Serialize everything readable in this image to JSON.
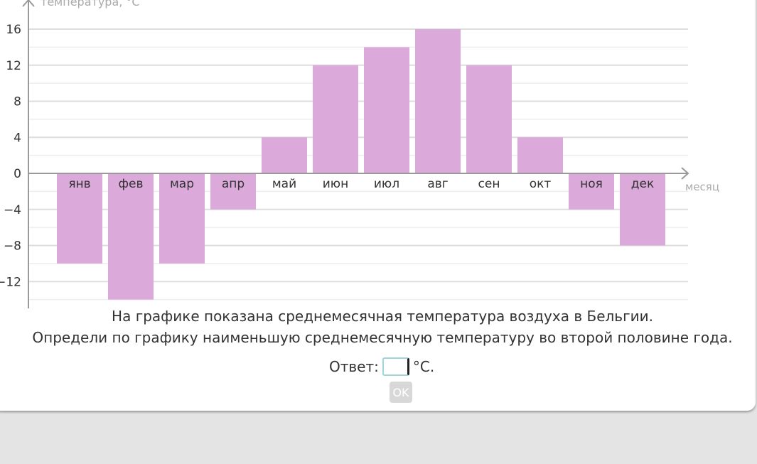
{
  "chart_data": {
    "type": "bar",
    "ylabel": "температура, °C",
    "xlabel": "месяц",
    "categories": [
      "янв",
      "фев",
      "мар",
      "апр",
      "май",
      "июн",
      "июл",
      "авг",
      "сен",
      "окт",
      "ноя",
      "дек"
    ],
    "values": [
      -10,
      -14,
      -10,
      -4,
      4,
      12,
      14,
      16,
      12,
      4,
      -4,
      -8
    ],
    "yticks": [
      16,
      12,
      8,
      4,
      0,
      -4,
      -8,
      -12
    ],
    "ylim": [
      -14.8,
      16
    ],
    "grid": true,
    "bar_color": "#dba9da"
  },
  "question": {
    "line1": "На графике показана среднемесячная температура воздуха в Бельгии.",
    "line2": "Определи по графику наименьшую среднемесячную температуру во второй половине года."
  },
  "answer": {
    "label": "Ответ:",
    "value": "",
    "unit": "°C."
  },
  "ok_label": "OK"
}
